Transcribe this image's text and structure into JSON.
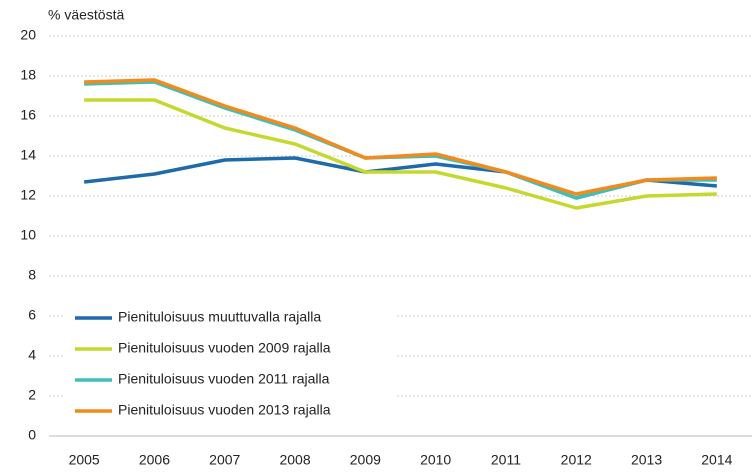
{
  "chart_data": {
    "type": "line",
    "y_label": "% väestöstä",
    "categories": [
      "2005",
      "2006",
      "2007",
      "2008",
      "2009",
      "2010",
      "2011",
      "2012",
      "2013",
      "2014"
    ],
    "series": [
      {
        "name": "Pienituloisuus muuttuvalla rajalla",
        "color": "#1f6aab",
        "values": [
          12.7,
          13.1,
          13.8,
          13.9,
          13.2,
          13.6,
          13.2,
          11.9,
          12.8,
          12.5
        ]
      },
      {
        "name": "Pienituloisuus vuoden 2009 rajalla",
        "color": "#c4d82e",
        "values": [
          16.8,
          16.8,
          15.4,
          14.6,
          13.2,
          13.2,
          12.4,
          11.4,
          12.0,
          12.1
        ]
      },
      {
        "name": "Pienituloisuus vuoden 2011 rajalla",
        "color": "#3fc0b5",
        "values": [
          17.6,
          17.7,
          16.4,
          15.3,
          13.9,
          14.0,
          13.2,
          11.9,
          12.8,
          12.8
        ]
      },
      {
        "name": "Pienituloisuus vuoden 2013 rajalla",
        "color": "#f28a1e",
        "values": [
          17.7,
          17.8,
          16.5,
          15.4,
          13.9,
          14.1,
          13.2,
          12.1,
          12.8,
          12.9
        ]
      }
    ],
    "ylim": [
      0,
      20
    ],
    "yticks": [
      0,
      2,
      4,
      6,
      8,
      10,
      12,
      14,
      16,
      18,
      20
    ],
    "grid": true,
    "legend": "lower left"
  }
}
